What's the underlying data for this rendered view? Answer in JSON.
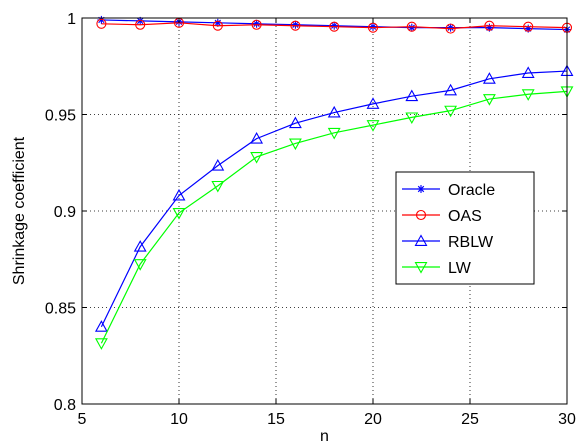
{
  "chart_data": {
    "type": "line",
    "xlabel": "n",
    "ylabel": "Shrinkage coefficient",
    "xlim": [
      5,
      30
    ],
    "ylim": [
      0.8,
      1.0
    ],
    "xticks": [
      5,
      10,
      15,
      20,
      25,
      30
    ],
    "yticks": [
      0.8,
      0.85,
      0.9,
      0.95,
      1.0
    ],
    "xtick_labels": [
      "5",
      "10",
      "15",
      "20",
      "25",
      "30"
    ],
    "ytick_labels": [
      "0.8",
      "0.85",
      "0.9",
      "0.95",
      "1"
    ],
    "grid": "dotted",
    "legend_position": "right-middle",
    "x": [
      6,
      8,
      10,
      12,
      14,
      16,
      18,
      20,
      22,
      24,
      26,
      28,
      30
    ],
    "series": [
      {
        "name": "Oracle",
        "color": "#0000ff",
        "marker": "asterisk",
        "values": [
          0.999,
          0.9985,
          0.998,
          0.9975,
          0.997,
          0.9965,
          0.996,
          0.9955,
          0.995,
          0.995,
          0.995,
          0.9945,
          0.994
        ]
      },
      {
        "name": "OAS",
        "color": "#ff0000",
        "marker": "circle",
        "values": [
          0.997,
          0.9965,
          0.9975,
          0.996,
          0.9965,
          0.996,
          0.9955,
          0.995,
          0.9955,
          0.9945,
          0.996,
          0.9955,
          0.995
        ]
      },
      {
        "name": "RBLW",
        "color": "#0000ff",
        "marker": "triangle-up",
        "values": [
          0.84,
          0.8815,
          0.908,
          0.9235,
          0.9375,
          0.9455,
          0.951,
          0.9555,
          0.9595,
          0.9625,
          0.9685,
          0.9715,
          0.9725
        ]
      },
      {
        "name": "LW",
        "color": "#00ff00",
        "marker": "triangle-down",
        "values": [
          0.8315,
          0.8725,
          0.899,
          0.913,
          0.928,
          0.935,
          0.9405,
          0.9445,
          0.9485,
          0.952,
          0.958,
          0.9605,
          0.962
        ]
      }
    ]
  }
}
